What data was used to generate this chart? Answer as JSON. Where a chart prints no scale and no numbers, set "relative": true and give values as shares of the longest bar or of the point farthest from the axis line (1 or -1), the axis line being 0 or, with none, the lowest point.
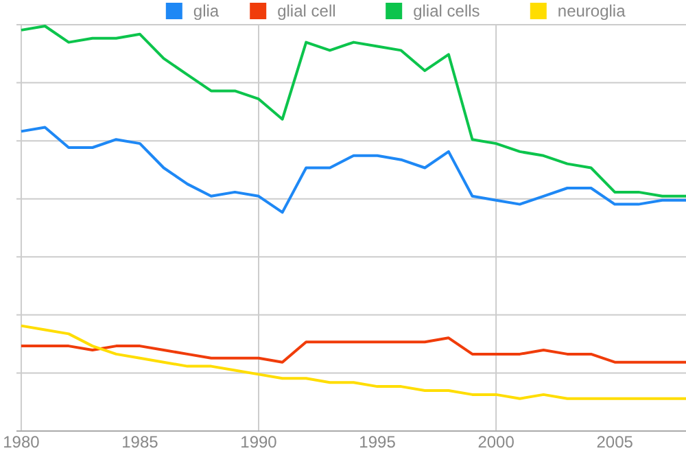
{
  "chart_data": {
    "type": "line",
    "relative": true,
    "x": [
      1980,
      1981,
      1982,
      1983,
      1984,
      1985,
      1986,
      1987,
      1988,
      1989,
      1990,
      1991,
      1992,
      1993,
      1994,
      1995,
      1996,
      1997,
      1998,
      1999,
      2000,
      2001,
      2002,
      2003,
      2004,
      2005,
      2006,
      2007,
      2008
    ],
    "xlim": [
      1979.8,
      2008
    ],
    "xticks": [
      1980,
      1985,
      1990,
      1995,
      2000,
      2005
    ],
    "grid": true,
    "legend": "top",
    "line_style": "solid",
    "marker": "none",
    "series": [
      {
        "name": "glia",
        "color": "#1e88f5",
        "values": [
          0.74,
          0.75,
          0.7,
          0.7,
          0.72,
          0.71,
          0.65,
          0.61,
          0.58,
          0.59,
          0.58,
          0.54,
          0.65,
          0.65,
          0.68,
          0.68,
          0.67,
          0.65,
          0.69,
          0.58,
          0.57,
          0.56,
          0.58,
          0.6,
          0.6,
          0.56,
          0.56,
          0.57,
          0.57
        ]
      },
      {
        "name": "glial cell",
        "color": "#f03c0a",
        "values": [
          0.21,
          0.21,
          0.21,
          0.2,
          0.21,
          0.21,
          0.2,
          0.19,
          0.18,
          0.18,
          0.18,
          0.17,
          0.22,
          0.22,
          0.22,
          0.22,
          0.22,
          0.22,
          0.23,
          0.19,
          0.19,
          0.19,
          0.2,
          0.19,
          0.19,
          0.17,
          0.17,
          0.17,
          0.17
        ]
      },
      {
        "name": "glial cells",
        "color": "#0cc44c",
        "values": [
          0.99,
          1,
          0.96,
          0.97,
          0.97,
          0.98,
          0.92,
          0.88,
          0.84,
          0.84,
          0.82,
          0.77,
          0.96,
          0.94,
          0.96,
          0.95,
          0.94,
          0.89,
          0.93,
          0.72,
          0.71,
          0.69,
          0.68,
          0.66,
          0.65,
          0.59,
          0.59,
          0.58,
          0.58
        ]
      },
      {
        "name": "neuroglia",
        "color": "#ffdd00",
        "values": [
          0.26,
          0.25,
          0.24,
          0.21,
          0.19,
          0.18,
          0.17,
          0.16,
          0.16,
          0.15,
          0.14,
          0.13,
          0.13,
          0.12,
          0.12,
          0.11,
          0.11,
          0.1,
          0.1,
          0.09,
          0.09,
          0.08,
          0.09,
          0.08,
          0.08,
          0.08,
          0.08,
          0.08,
          0.08
        ]
      }
    ]
  }
}
